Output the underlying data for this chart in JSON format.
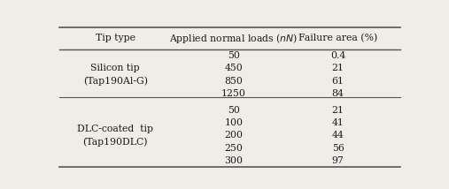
{
  "headers": [
    "Tip type",
    "Applied normal loads ($nN$)",
    "Failure area (%)"
  ],
  "group1_label": "Silicon tip\n(Tap190Al-G)",
  "group2_label": "DLC-coated  tip\n(Tap190DLC)",
  "col2": [
    "50",
    "450",
    "850",
    "1250",
    "50",
    "100",
    "200",
    "250",
    "300"
  ],
  "col3": [
    "0.4",
    "21",
    "61",
    "84",
    "21",
    "41",
    "44",
    "56",
    "97"
  ],
  "figsize": [
    5.07,
    2.14
  ],
  "dpi": 100,
  "bg_color": "#f0ede8",
  "text_color": "#1a1a1a",
  "line_color": "#555555",
  "font_size": 7.8
}
